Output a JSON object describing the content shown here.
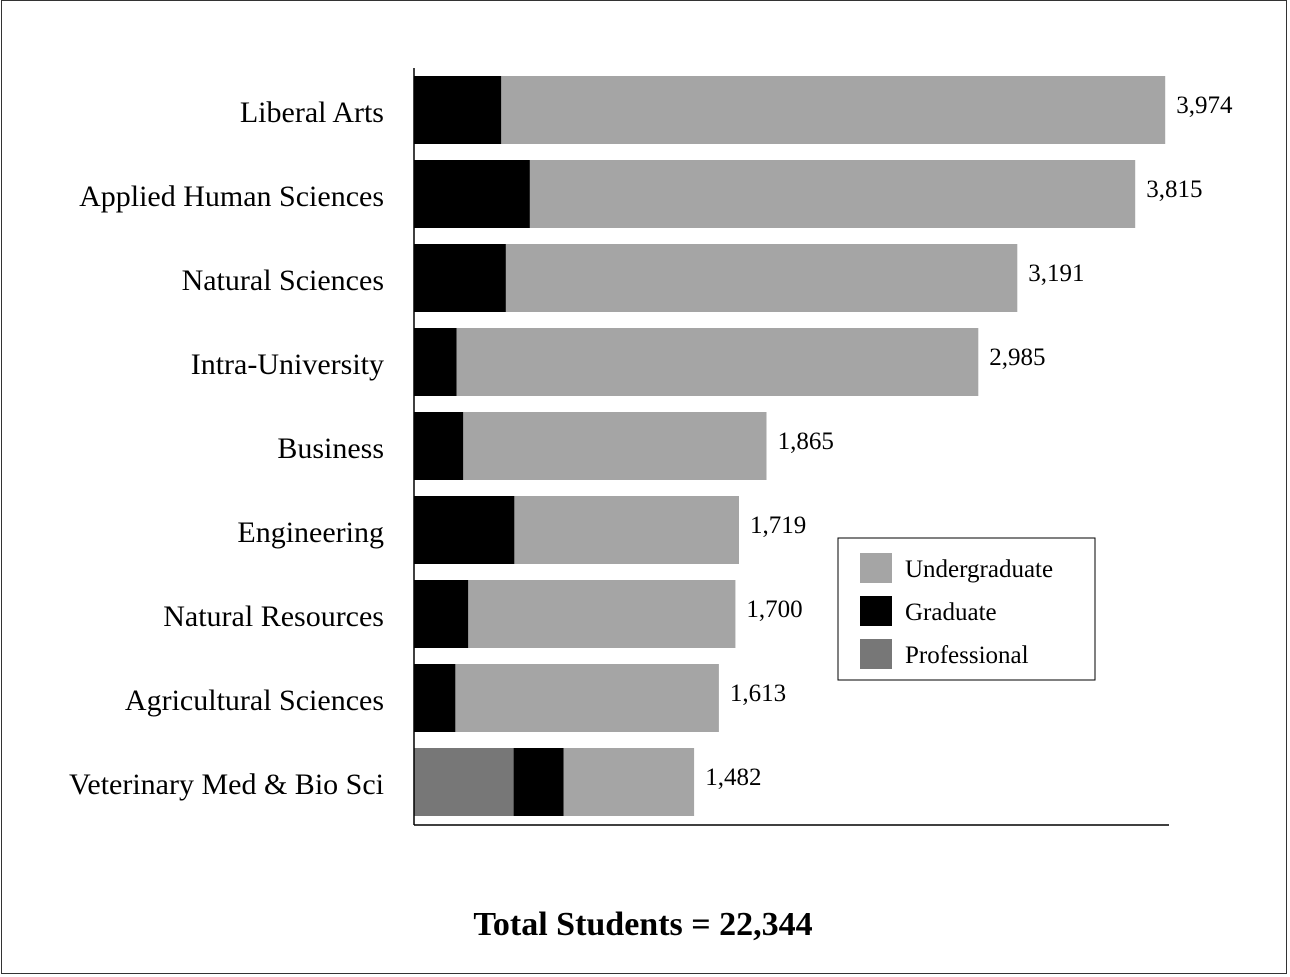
{
  "chart_data": {
    "type": "bar",
    "orientation": "horizontal",
    "stacked": true,
    "categories": [
      "Liberal Arts",
      "Applied Human Sciences",
      "Natural Sciences",
      "Intra-University",
      "Business",
      "Engineering",
      "Natural Resources",
      "Agricultural Sciences",
      "Veterinary Med & Bio Sci"
    ],
    "series": [
      {
        "name": "Professional",
        "color": "#777777",
        "values": [
          0,
          0,
          0,
          0,
          0,
          0,
          0,
          0,
          527
        ]
      },
      {
        "name": "Graduate",
        "color": "#000000",
        "values": [
          462,
          613,
          486,
          225,
          261,
          531,
          287,
          219,
          265
        ]
      },
      {
        "name": "Undergraduate",
        "color": "#a5a5a5",
        "values": [
          3512,
          3202,
          2705,
          2760,
          1604,
          1188,
          1413,
          1394,
          690
        ]
      }
    ],
    "totals": [
      3974,
      3815,
      3191,
      2985,
      1865,
      1719,
      1700,
      1613,
      1482
    ],
    "total_labels": [
      "3,974",
      "3,815",
      "3,191",
      "2,985",
      "1,865",
      "1,719",
      "1,700",
      "1,613",
      "1,482"
    ],
    "legend_order": [
      "Undergraduate",
      "Graduate",
      "Professional"
    ],
    "legend_position": "right",
    "xlim": [
      0,
      4000
    ],
    "grid": false,
    "footer": "Total Students = 22,344"
  }
}
